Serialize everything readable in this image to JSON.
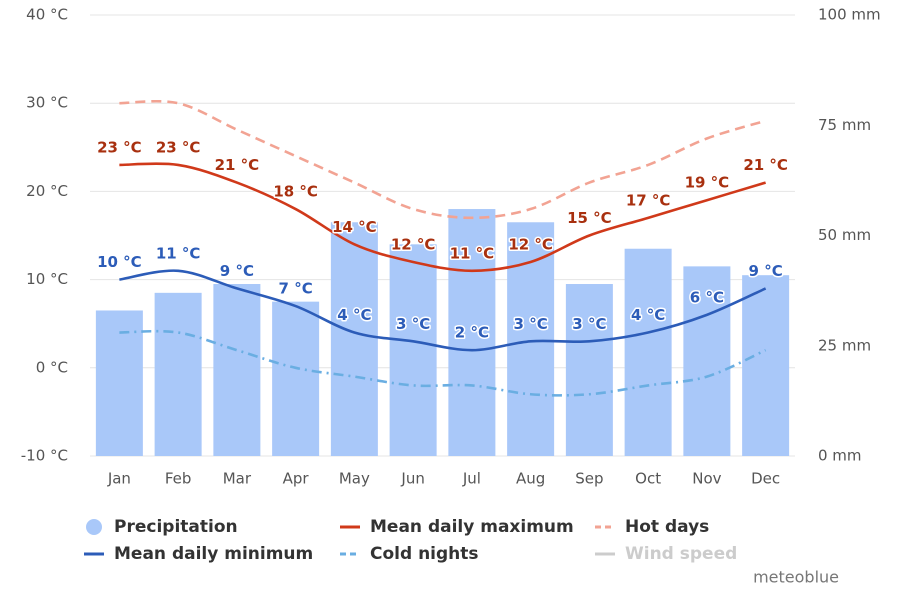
{
  "chart_data": {
    "type": "combo",
    "categories": [
      "Jan",
      "Feb",
      "Mar",
      "Apr",
      "May",
      "Jun",
      "Jul",
      "Aug",
      "Sep",
      "Oct",
      "Nov",
      "Dec"
    ],
    "ylim": [
      -10,
      40
    ],
    "yticks": [
      {
        "value": -10,
        "label": "-10 °C"
      },
      {
        "value": 0,
        "label": "0 °C"
      },
      {
        "value": 10,
        "label": "10 °C"
      },
      {
        "value": 20,
        "label": "20 °C"
      },
      {
        "value": 30,
        "label": "30 °C"
      },
      {
        "value": 40,
        "label": "40 °C"
      }
    ],
    "y2lim": [
      0,
      100
    ],
    "y2ticks": [
      {
        "value": 0,
        "label": "0 mm"
      },
      {
        "value": 25,
        "label": "25 mm"
      },
      {
        "value": 50,
        "label": "50 mm"
      },
      {
        "value": 75,
        "label": "75 mm"
      },
      {
        "value": 100,
        "label": "100 mm"
      }
    ],
    "grid": true,
    "series": [
      {
        "name": "Precipitation",
        "type": "bar",
        "axis": "y2",
        "color": "#a9c8f9",
        "values": [
          33,
          37,
          39,
          35,
          53,
          48,
          56,
          53,
          39,
          47,
          43,
          41
        ]
      },
      {
        "name": "Mean daily maximum",
        "type": "line",
        "color": "#d0391a",
        "dash": "solid",
        "values": [
          23,
          23,
          21,
          18,
          14,
          12,
          11,
          12,
          15,
          17,
          19,
          21
        ],
        "value_labels": [
          "23 °C",
          "23 °C",
          "21 °C",
          "18 °C",
          "14 °C",
          "12 °C",
          "11 °C",
          "12 °C",
          "15 °C",
          "17 °C",
          "19 °C",
          "21 °C"
        ],
        "label_color": "#a8300f"
      },
      {
        "name": "Hot days",
        "type": "line",
        "color": "#f2a393",
        "dash": "dashed",
        "values": [
          30,
          30,
          27,
          24,
          21,
          18,
          17,
          18,
          21,
          23,
          26,
          28
        ]
      },
      {
        "name": "Mean daily minimum",
        "type": "line",
        "color": "#2c5cb8",
        "dash": "solid",
        "values": [
          10,
          11,
          9,
          7,
          4,
          3,
          2,
          3,
          3,
          4,
          6,
          9
        ],
        "value_labels": [
          "10 °C",
          "11 °C",
          "9 °C",
          "7 °C",
          "4 °C",
          "3 °C",
          "2 °C",
          "3 °C",
          "3 °C",
          "4 °C",
          "6 °C",
          "9 °C"
        ],
        "label_color": "#2c5cb8"
      },
      {
        "name": "Cold nights",
        "type": "line",
        "color": "#6aaee2",
        "dash": "dashdot",
        "values": [
          4,
          4,
          2,
          0,
          -1,
          -2,
          -2,
          -3,
          -3,
          -2,
          -1,
          2
        ]
      },
      {
        "name": "Wind speed",
        "type": "line",
        "color": "#cccccc",
        "dash": "solid",
        "visible": false,
        "values": [
          null,
          null,
          null,
          null,
          null,
          null,
          null,
          null,
          null,
          null,
          null,
          null
        ]
      }
    ],
    "credit": "meteoblue"
  }
}
